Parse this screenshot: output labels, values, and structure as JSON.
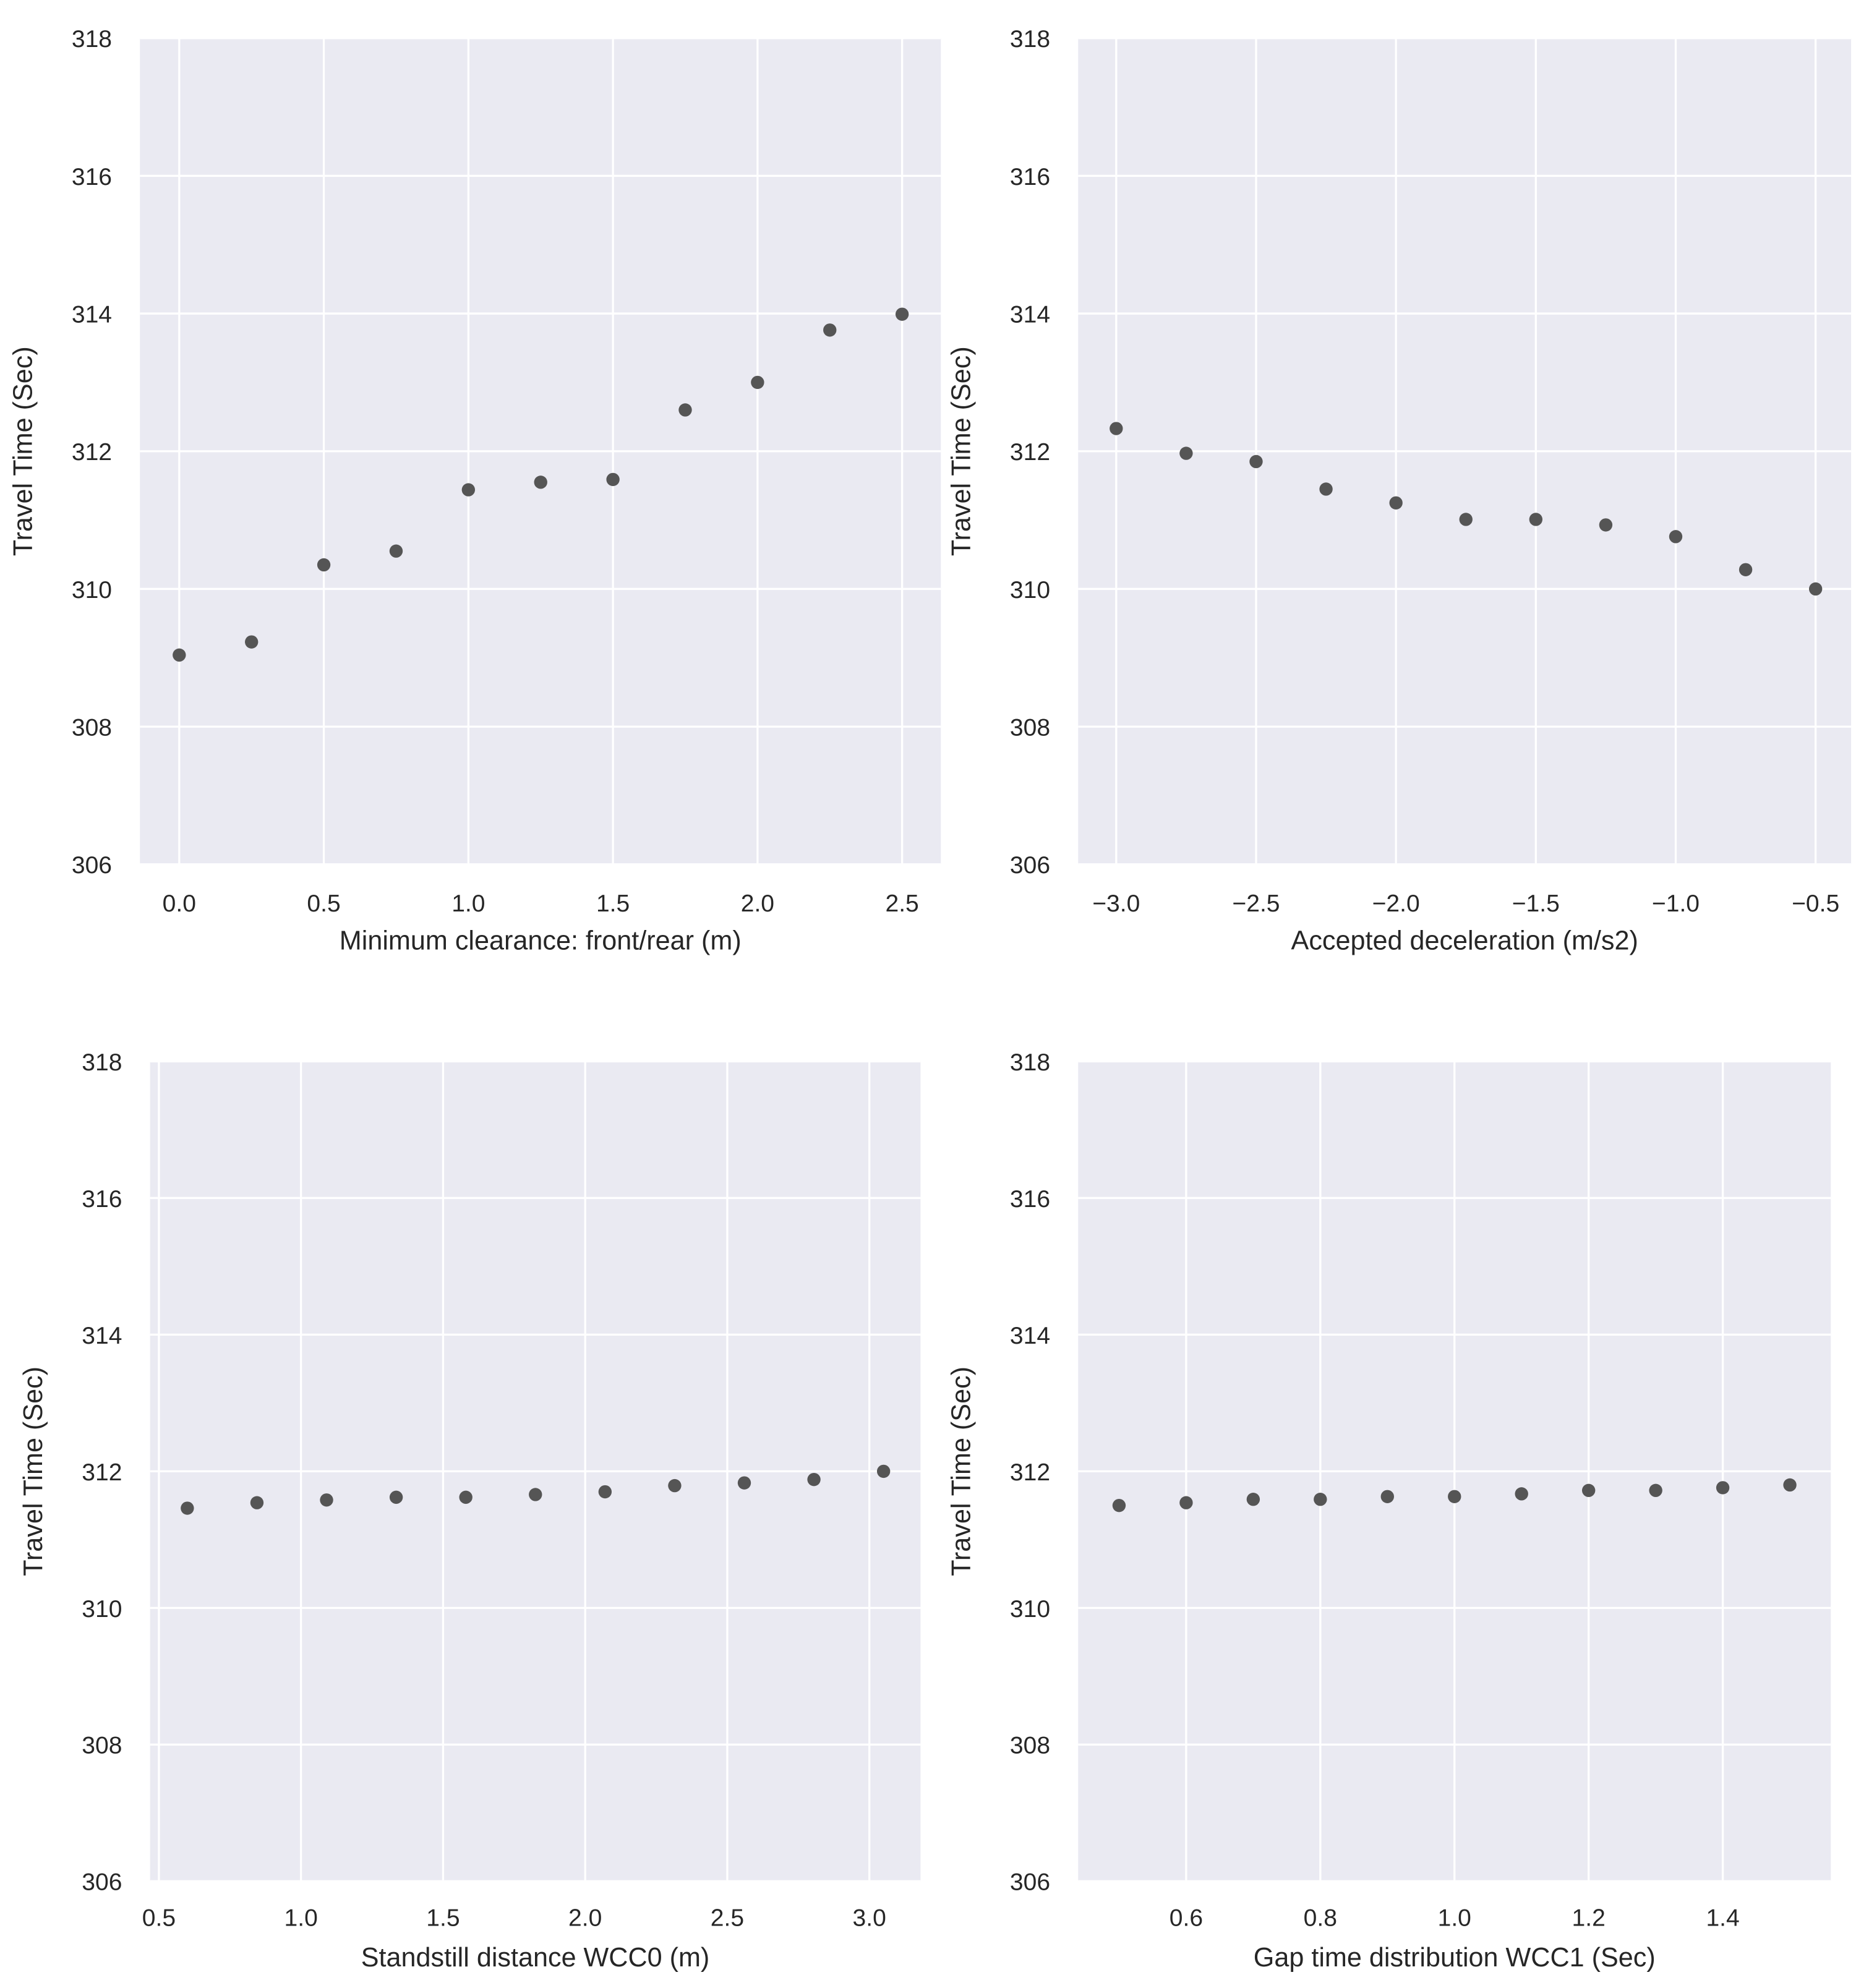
{
  "chart_data": [
    {
      "type": "scatter",
      "xlabel": "Minimum clearance: front/rear (m)",
      "ylabel": "Travel Time (Sec)",
      "xlim": [
        -0.136,
        2.634
      ],
      "ylim": [
        306,
        318
      ],
      "xticks": [
        0.0,
        0.5,
        1.0,
        1.5,
        2.0,
        2.5
      ],
      "xtick_labels": [
        "0.0",
        "0.5",
        "1.0",
        "1.5",
        "2.0",
        "2.5"
      ],
      "yticks": [
        306,
        308,
        310,
        312,
        314,
        316,
        318
      ],
      "ytick_labels": [
        "306",
        "308",
        "310",
        "312",
        "314",
        "316",
        "318"
      ],
      "x": [
        0.0,
        0.25,
        0.5,
        0.75,
        1.0,
        1.25,
        1.5,
        1.75,
        2.0,
        2.25,
        2.5
      ],
      "y": [
        309.04,
        309.23,
        310.35,
        310.55,
        311.44,
        311.55,
        311.59,
        312.6,
        313.0,
        313.76,
        313.99
      ],
      "grid": true
    },
    {
      "type": "scatter",
      "xlabel": "Accepted deceleration (m/s2)",
      "ylabel": "Travel Time (Sec)",
      "xlim": [
        -3.136,
        -0.373
      ],
      "ylim": [
        306,
        318
      ],
      "xticks": [
        -3.0,
        -2.5,
        -2.0,
        -1.5,
        -1.0,
        -0.5
      ],
      "xtick_labels": [
        "−3.0",
        "−2.5",
        "−2.0",
        "−1.5",
        "−1.0",
        "−0.5"
      ],
      "yticks": [
        306,
        308,
        310,
        312,
        314,
        316,
        318
      ],
      "ytick_labels": [
        "306",
        "308",
        "310",
        "312",
        "314",
        "316",
        "318"
      ],
      "x": [
        -3.0,
        -2.75,
        -2.5,
        -2.25,
        -2.0,
        -1.75,
        -1.5,
        -1.25,
        -1.0,
        -0.75,
        -0.5
      ],
      "y": [
        312.33,
        311.97,
        311.85,
        311.45,
        311.25,
        311.01,
        311.01,
        310.93,
        310.76,
        310.28,
        310.0
      ],
      "grid": true
    },
    {
      "type": "scatter",
      "xlabel": "Standstill distance WCC0 (m)",
      "ylabel": "Travel Time (Sec)",
      "xlim": [
        0.469,
        3.18
      ],
      "ylim": [
        306,
        318
      ],
      "xticks": [
        0.5,
        1.0,
        1.5,
        2.0,
        2.5,
        3.0
      ],
      "xtick_labels": [
        "0.5",
        "1.0",
        "1.5",
        "2.0",
        "2.5",
        "3.0"
      ],
      "yticks": [
        306,
        308,
        310,
        312,
        314,
        316,
        318
      ],
      "ytick_labels": [
        "306",
        "308",
        "310",
        "312",
        "314",
        "316",
        "318"
      ],
      "x": [
        0.6,
        0.845,
        1.09,
        1.335,
        1.58,
        1.825,
        2.07,
        2.315,
        2.56,
        2.805,
        3.05
      ],
      "y": [
        311.46,
        311.54,
        311.58,
        311.62,
        311.62,
        311.66,
        311.7,
        311.79,
        311.83,
        311.88,
        312.0
      ],
      "grid": true
    },
    {
      "type": "scatter",
      "xlabel": "Gap time distribution WCC1 (Sec)",
      "ylabel": "Travel Time (Sec)",
      "xlim": [
        0.439,
        1.561
      ],
      "ylim": [
        306,
        318
      ],
      "xticks": [
        0.6,
        0.8,
        1.0,
        1.2,
        1.4
      ],
      "xtick_labels": [
        "0.6",
        "0.8",
        "1.0",
        "1.2",
        "1.4"
      ],
      "yticks": [
        306,
        308,
        310,
        312,
        314,
        316,
        318
      ],
      "ytick_labels": [
        "306",
        "308",
        "310",
        "312",
        "314",
        "316",
        "318"
      ],
      "x": [
        0.5,
        0.6,
        0.7,
        0.8,
        0.9,
        1.0,
        1.1,
        1.2,
        1.3,
        1.4,
        1.5
      ],
      "y": [
        311.5,
        311.54,
        311.59,
        311.59,
        311.63,
        311.63,
        311.67,
        311.72,
        311.72,
        311.76,
        311.8
      ],
      "grid": true
    }
  ],
  "colors": {
    "axes_bg": "#eaeaf2",
    "grid": "#ffffff",
    "marker": "#555555",
    "text": "#262626"
  }
}
